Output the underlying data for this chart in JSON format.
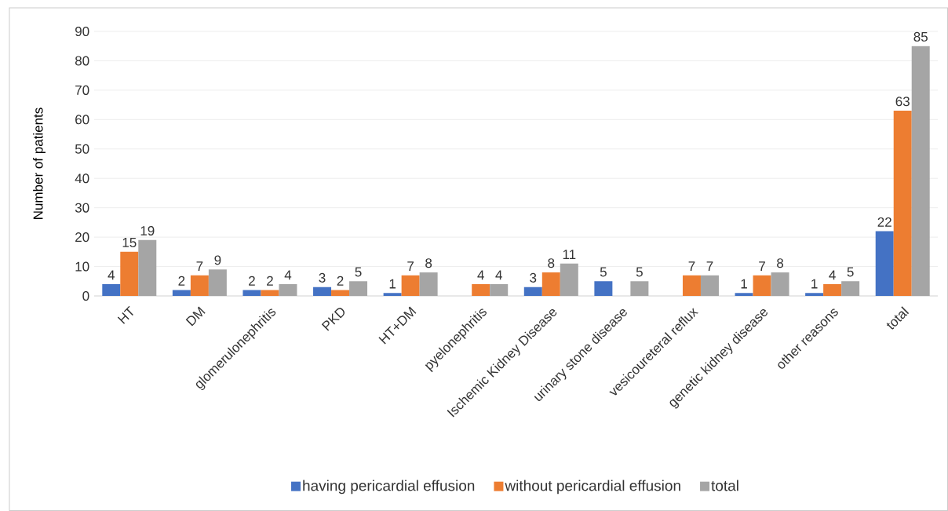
{
  "chart_data": {
    "type": "bar",
    "ylabel": "Number of patients",
    "categories": [
      "HT",
      "DM",
      "glomerulonephritis",
      "PKD",
      "HT+DM",
      "pyelonephritis",
      "Ischemic Kidney Disease",
      "urinary stone disease",
      "vesicoureteral reflux",
      "genetic kidney disease",
      "other reasons",
      "total"
    ],
    "series": [
      {
        "name": "having pericardial effusion",
        "color": "#4472c4",
        "values": [
          4,
          2,
          2,
          3,
          1,
          null,
          3,
          5,
          null,
          1,
          1,
          22
        ]
      },
      {
        "name": "without pericardial effusion",
        "color": "#ed7d31",
        "values": [
          15,
          7,
          2,
          2,
          7,
          4,
          8,
          null,
          7,
          7,
          4,
          63
        ]
      },
      {
        "name": "total",
        "color": "#a5a5a5",
        "values": [
          19,
          9,
          4,
          5,
          8,
          4,
          11,
          5,
          7,
          8,
          5,
          85
        ]
      }
    ],
    "ylim": [
      0,
      90
    ],
    "yticks": [
      0,
      10,
      20,
      30,
      40,
      50,
      60,
      70,
      80,
      90
    ],
    "grid": "y",
    "legend": "bottom",
    "data_labels": true
  }
}
